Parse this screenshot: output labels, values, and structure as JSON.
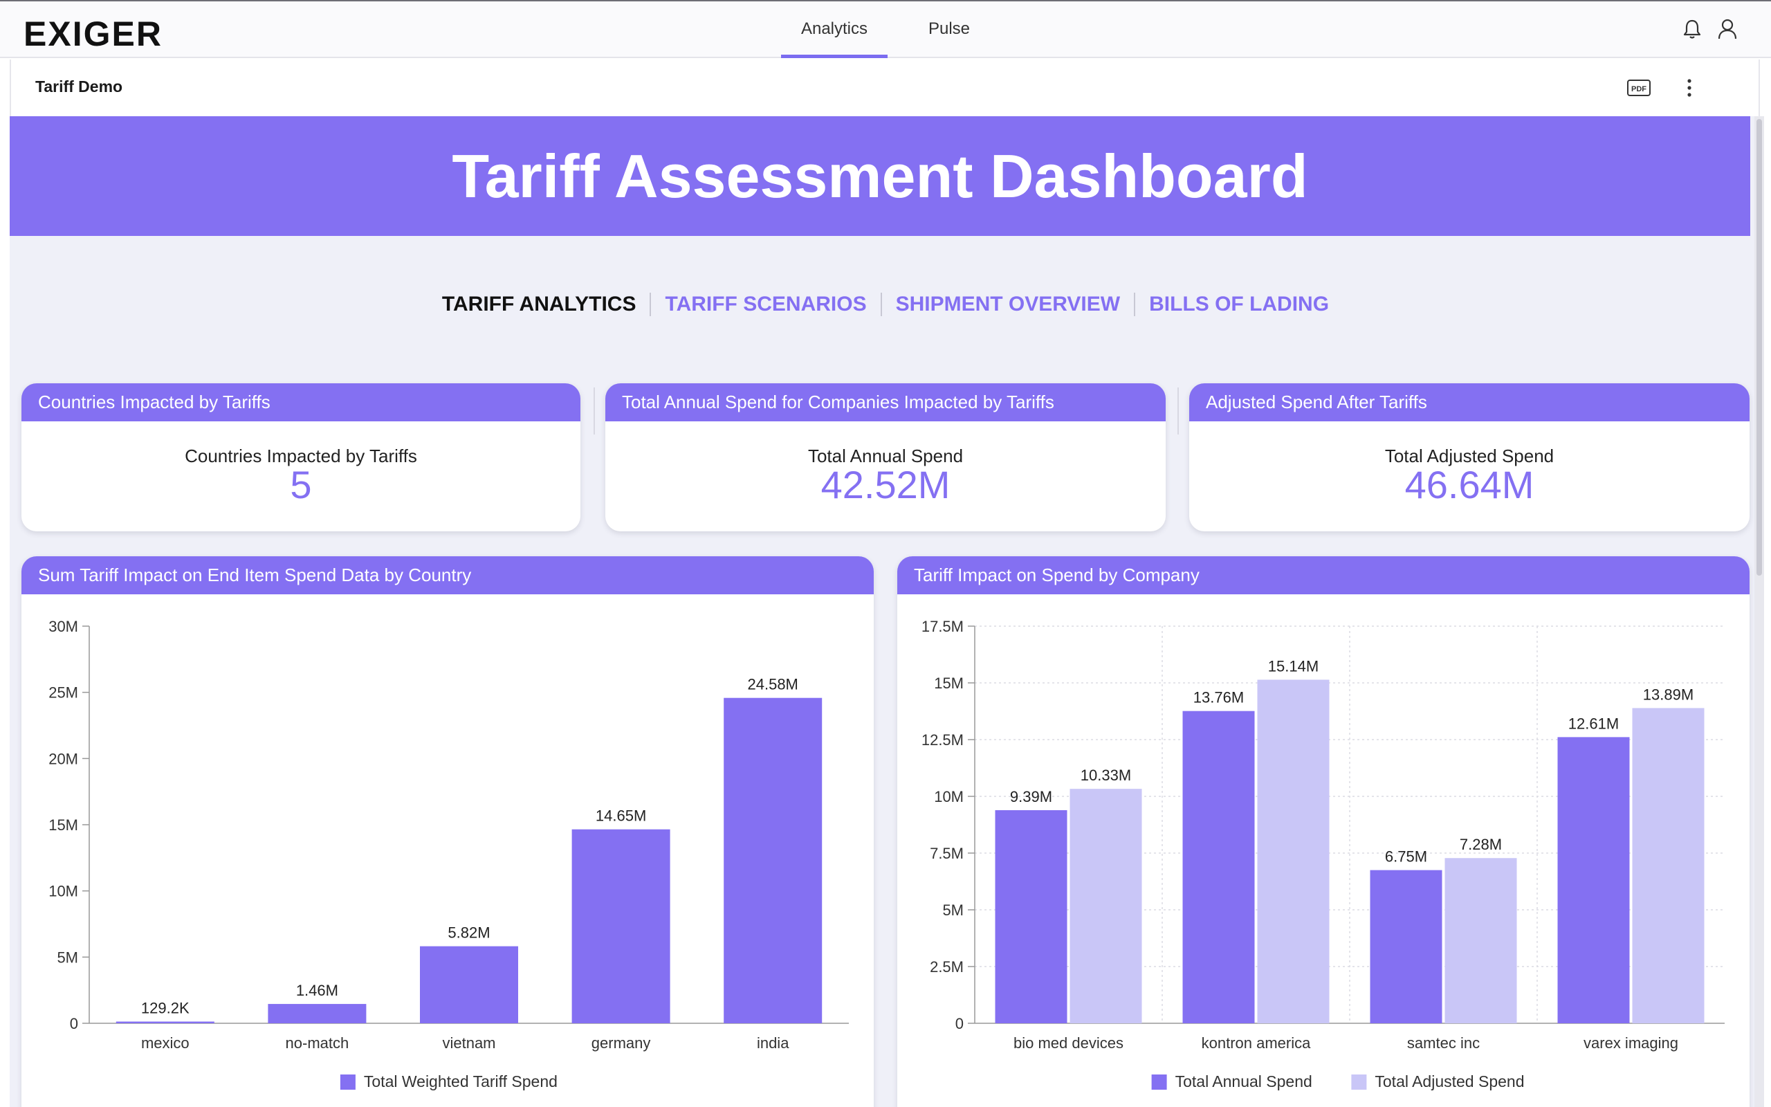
{
  "nav": {
    "logo": "EXIGER",
    "tabs": [
      "Analytics",
      "Pulse"
    ],
    "active_tab": "Analytics",
    "icons": [
      "bell-icon",
      "user-icon"
    ]
  },
  "subheader": {
    "title": "Tariff Demo",
    "icons": [
      "pdf-icon",
      "more-vertical-icon"
    ]
  },
  "banner": {
    "title": "Tariff Assessment Dashboard"
  },
  "section_tabs": [
    {
      "label": "TARIFF ANALYTICS",
      "active": true
    },
    {
      "label": "TARIFF SCENARIOS",
      "active": false
    },
    {
      "label": "SHIPMENT OVERVIEW",
      "active": false
    },
    {
      "label": "BILLS OF LADING",
      "active": false
    }
  ],
  "kpis": [
    {
      "title": "Countries Impacted by Tariffs",
      "label": "Countries Impacted by Tariffs",
      "value": "5"
    },
    {
      "title": "Total Annual Spend for Companies Impacted by Tariffs",
      "label": "Total Annual Spend",
      "value": "42.52M"
    },
    {
      "title": "Adjusted Spend After Tariffs",
      "label": "Total Adjusted Spend",
      "value": "46.64M"
    }
  ],
  "colors": {
    "accent": "#8470f2",
    "series_dark": "#8470f2",
    "series_light": "#c9c6f7"
  },
  "chart_data": [
    {
      "type": "bar",
      "title": "Sum Tariff Impact on End Item Spend Data by Country",
      "categories": [
        "mexico",
        "no-match",
        "vietnam",
        "germany",
        "india"
      ],
      "series": [
        {
          "name": "Total Weighted Tariff Spend",
          "values": [
            129200,
            1460000,
            5820000,
            14650000,
            24580000
          ],
          "labels": [
            "129.2K",
            "1.46M",
            "5.82M",
            "14.65M",
            "24.58M"
          ]
        }
      ],
      "y_ticks": [
        "0",
        "5M",
        "10M",
        "15M",
        "20M",
        "25M",
        "30M"
      ],
      "ylim": [
        0,
        30000000
      ],
      "legend": "bottom-center",
      "grid": false
    },
    {
      "type": "bar",
      "title": "Tariff Impact on Spend by Company",
      "categories": [
        "bio med devices",
        "kontron america",
        "samtec inc",
        "varex imaging"
      ],
      "series": [
        {
          "name": "Total Annual Spend",
          "values": [
            9390000,
            13760000,
            6750000,
            12610000
          ],
          "labels": [
            "9.39M",
            "13.76M",
            "6.75M",
            "12.61M"
          ]
        },
        {
          "name": "Total Adjusted Spend",
          "values": [
            10330000,
            15140000,
            7280000,
            13890000
          ],
          "labels": [
            "10.33M",
            "15.14M",
            "7.28M",
            "13.89M"
          ]
        }
      ],
      "y_ticks": [
        "0",
        "2.5M",
        "5M",
        "7.5M",
        "10M",
        "12.5M",
        "15M",
        "17.5M"
      ],
      "ylim": [
        0,
        17500000
      ],
      "legend": "bottom-center",
      "grid": true
    }
  ]
}
